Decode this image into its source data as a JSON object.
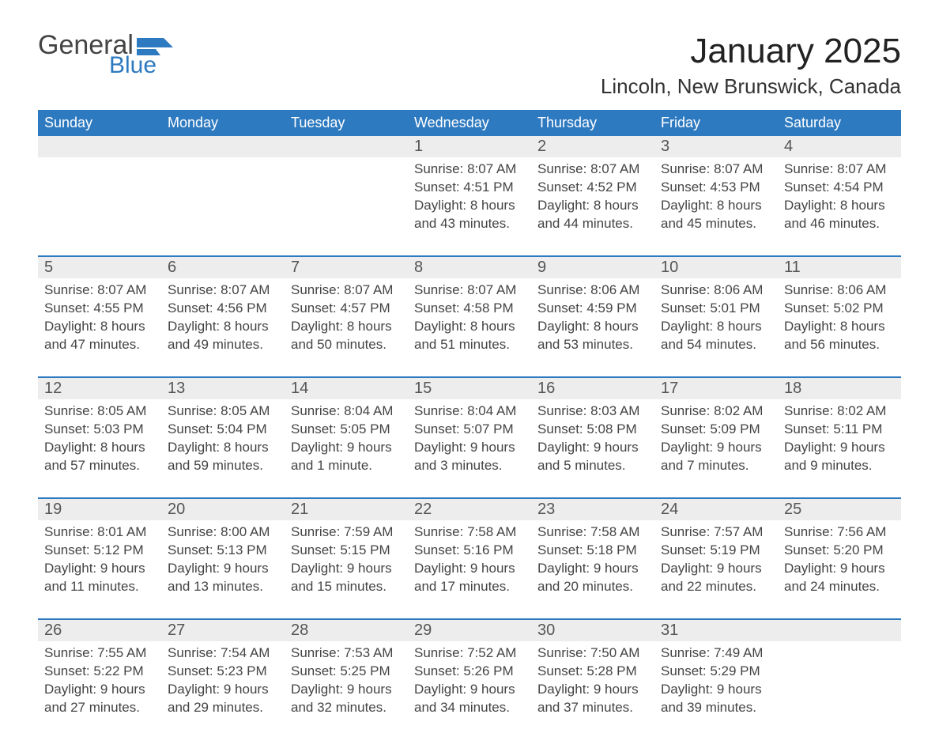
{
  "logo": {
    "text1": "General",
    "text2": "Blue",
    "accent": "#2e7ac0",
    "dark": "#444444"
  },
  "title": "January 2025",
  "location": "Lincoln, New Brunswick, Canada",
  "colors": {
    "header_bg": "#2e7ac0",
    "header_text": "#ffffff",
    "band_bg": "#ededed",
    "rule": "#2e7ac0",
    "body_text": "#444444",
    "daynum_text": "#555555",
    "page_bg": "#ffffff"
  },
  "typography": {
    "title_fontsize": 44,
    "location_fontsize": 26,
    "dow_fontsize": 18,
    "daynum_fontsize": 20,
    "body_fontsize": 17,
    "font_family": "Arial"
  },
  "dow": [
    "Sunday",
    "Monday",
    "Tuesday",
    "Wednesday",
    "Thursday",
    "Friday",
    "Saturday"
  ],
  "labels": {
    "sunrise": "Sunrise:",
    "sunset": "Sunset:",
    "daylight": "Daylight:"
  },
  "weeks": [
    [
      null,
      null,
      null,
      {
        "n": "1",
        "sunrise": "8:07 AM",
        "sunset": "4:51 PM",
        "daylight": "8 hours and 43 minutes."
      },
      {
        "n": "2",
        "sunrise": "8:07 AM",
        "sunset": "4:52 PM",
        "daylight": "8 hours and 44 minutes."
      },
      {
        "n": "3",
        "sunrise": "8:07 AM",
        "sunset": "4:53 PM",
        "daylight": "8 hours and 45 minutes."
      },
      {
        "n": "4",
        "sunrise": "8:07 AM",
        "sunset": "4:54 PM",
        "daylight": "8 hours and 46 minutes."
      }
    ],
    [
      {
        "n": "5",
        "sunrise": "8:07 AM",
        "sunset": "4:55 PM",
        "daylight": "8 hours and 47 minutes."
      },
      {
        "n": "6",
        "sunrise": "8:07 AM",
        "sunset": "4:56 PM",
        "daylight": "8 hours and 49 minutes."
      },
      {
        "n": "7",
        "sunrise": "8:07 AM",
        "sunset": "4:57 PM",
        "daylight": "8 hours and 50 minutes."
      },
      {
        "n": "8",
        "sunrise": "8:07 AM",
        "sunset": "4:58 PM",
        "daylight": "8 hours and 51 minutes."
      },
      {
        "n": "9",
        "sunrise": "8:06 AM",
        "sunset": "4:59 PM",
        "daylight": "8 hours and 53 minutes."
      },
      {
        "n": "10",
        "sunrise": "8:06 AM",
        "sunset": "5:01 PM",
        "daylight": "8 hours and 54 minutes."
      },
      {
        "n": "11",
        "sunrise": "8:06 AM",
        "sunset": "5:02 PM",
        "daylight": "8 hours and 56 minutes."
      }
    ],
    [
      {
        "n": "12",
        "sunrise": "8:05 AM",
        "sunset": "5:03 PM",
        "daylight": "8 hours and 57 minutes."
      },
      {
        "n": "13",
        "sunrise": "8:05 AM",
        "sunset": "5:04 PM",
        "daylight": "8 hours and 59 minutes."
      },
      {
        "n": "14",
        "sunrise": "8:04 AM",
        "sunset": "5:05 PM",
        "daylight": "9 hours and 1 minute."
      },
      {
        "n": "15",
        "sunrise": "8:04 AM",
        "sunset": "5:07 PM",
        "daylight": "9 hours and 3 minutes."
      },
      {
        "n": "16",
        "sunrise": "8:03 AM",
        "sunset": "5:08 PM",
        "daylight": "9 hours and 5 minutes."
      },
      {
        "n": "17",
        "sunrise": "8:02 AM",
        "sunset": "5:09 PM",
        "daylight": "9 hours and 7 minutes."
      },
      {
        "n": "18",
        "sunrise": "8:02 AM",
        "sunset": "5:11 PM",
        "daylight": "9 hours and 9 minutes."
      }
    ],
    [
      {
        "n": "19",
        "sunrise": "8:01 AM",
        "sunset": "5:12 PM",
        "daylight": "9 hours and 11 minutes."
      },
      {
        "n": "20",
        "sunrise": "8:00 AM",
        "sunset": "5:13 PM",
        "daylight": "9 hours and 13 minutes."
      },
      {
        "n": "21",
        "sunrise": "7:59 AM",
        "sunset": "5:15 PM",
        "daylight": "9 hours and 15 minutes."
      },
      {
        "n": "22",
        "sunrise": "7:58 AM",
        "sunset": "5:16 PM",
        "daylight": "9 hours and 17 minutes."
      },
      {
        "n": "23",
        "sunrise": "7:58 AM",
        "sunset": "5:18 PM",
        "daylight": "9 hours and 20 minutes."
      },
      {
        "n": "24",
        "sunrise": "7:57 AM",
        "sunset": "5:19 PM",
        "daylight": "9 hours and 22 minutes."
      },
      {
        "n": "25",
        "sunrise": "7:56 AM",
        "sunset": "5:20 PM",
        "daylight": "9 hours and 24 minutes."
      }
    ],
    [
      {
        "n": "26",
        "sunrise": "7:55 AM",
        "sunset": "5:22 PM",
        "daylight": "9 hours and 27 minutes."
      },
      {
        "n": "27",
        "sunrise": "7:54 AM",
        "sunset": "5:23 PM",
        "daylight": "9 hours and 29 minutes."
      },
      {
        "n": "28",
        "sunrise": "7:53 AM",
        "sunset": "5:25 PM",
        "daylight": "9 hours and 32 minutes."
      },
      {
        "n": "29",
        "sunrise": "7:52 AM",
        "sunset": "5:26 PM",
        "daylight": "9 hours and 34 minutes."
      },
      {
        "n": "30",
        "sunrise": "7:50 AM",
        "sunset": "5:28 PM",
        "daylight": "9 hours and 37 minutes."
      },
      {
        "n": "31",
        "sunrise": "7:49 AM",
        "sunset": "5:29 PM",
        "daylight": "9 hours and 39 minutes."
      },
      null
    ]
  ]
}
